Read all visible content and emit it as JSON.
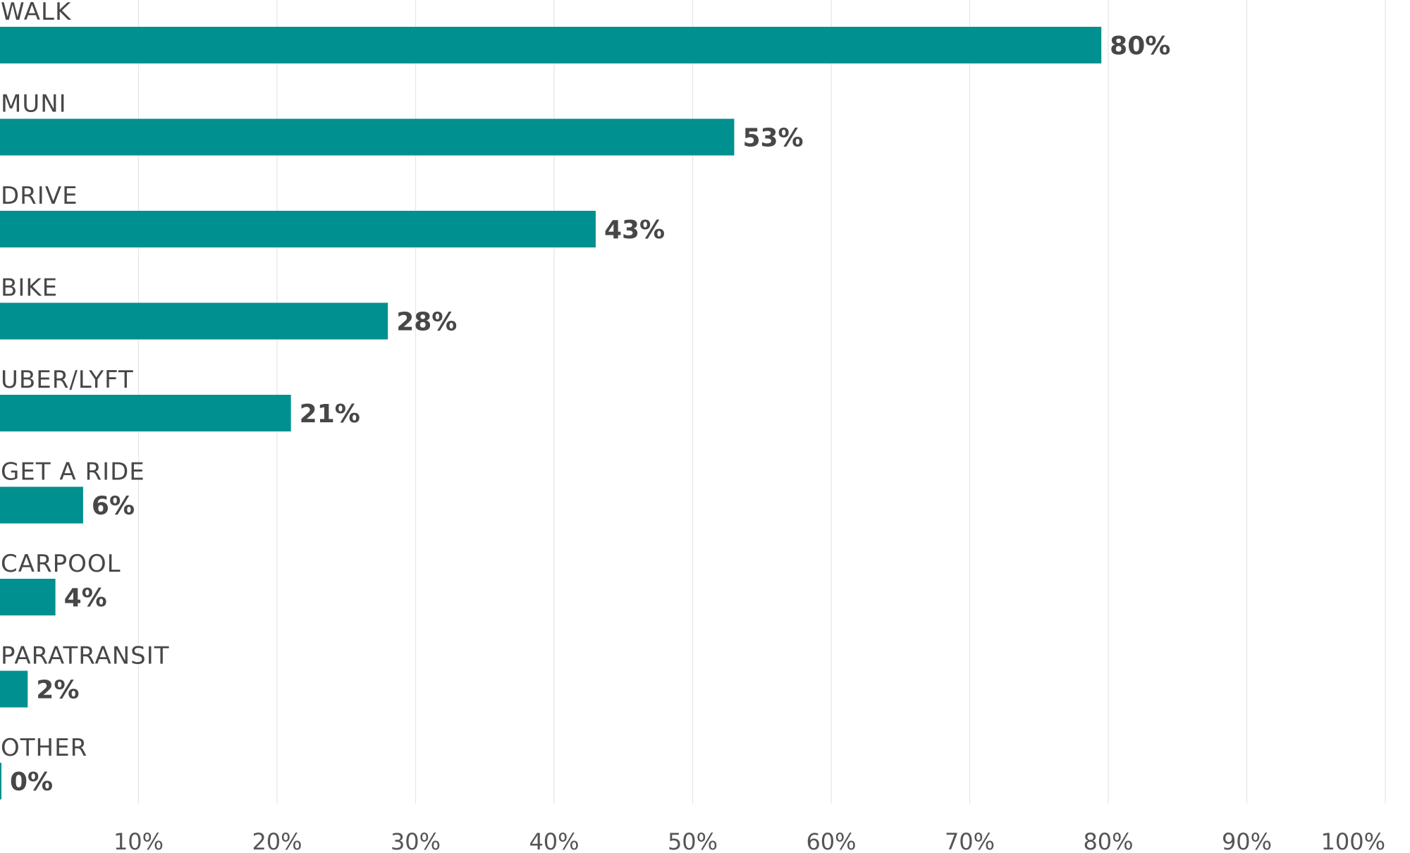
{
  "chart_data": {
    "type": "bar",
    "orientation": "horizontal",
    "title": "",
    "xlabel": "",
    "ylabel": "",
    "categories": [
      "WALK",
      "MUNI",
      "DRIVE",
      "BIKE",
      "UBER/LYFT",
      "GET A RIDE",
      "CARPOOL",
      "PARATRANSIT",
      "OTHER"
    ],
    "values": [
      79.5,
      53,
      43,
      28,
      21,
      6,
      4,
      2,
      0
    ],
    "value_labels": [
      "80%",
      "53%",
      "43%",
      "28%",
      "21%",
      "6%",
      "4%",
      "2%",
      "0%"
    ],
    "xlim": [
      0,
      100
    ],
    "x_ticks": [
      10,
      20,
      30,
      40,
      50,
      60,
      70,
      80,
      90,
      100
    ],
    "x_tick_labels": [
      "10%",
      "20%",
      "30%",
      "40%",
      "50%",
      "60%",
      "70%",
      "80%",
      "90%",
      "100%"
    ],
    "grid": true,
    "legend": "none",
    "bar_color": "#009090",
    "grid_color": "#e6e6e6",
    "text_color": "#474747"
  }
}
